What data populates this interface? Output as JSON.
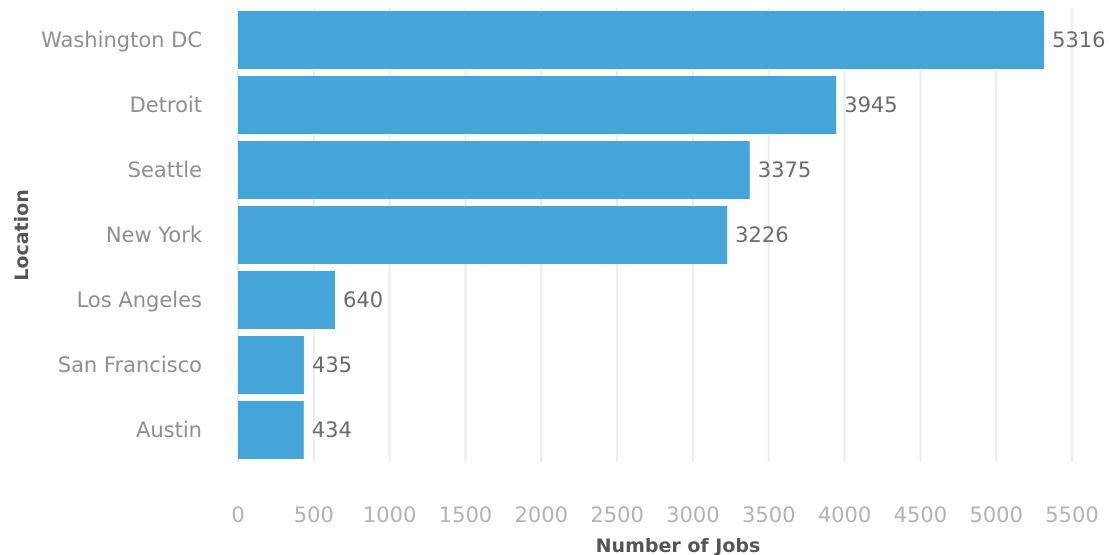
{
  "chart_data": {
    "type": "bar",
    "orientation": "horizontal",
    "categories": [
      "Washington DC",
      "Detroit",
      "Seattle",
      "New York",
      "Los Angeles",
      "San Francisco",
      "Austin"
    ],
    "values": [
      5316,
      3945,
      3375,
      3226,
      640,
      435,
      434
    ],
    "value_labels": [
      "5316",
      "3945",
      "3375",
      "3226",
      "640",
      "435",
      "434"
    ],
    "xlabel": "Number of Jobs",
    "ylabel": "Location",
    "xlim": [
      0,
      5500
    ],
    "x_ticks": [
      "0",
      "500",
      "1000",
      "1500",
      "2000",
      "2500",
      "3000",
      "3500",
      "4000",
      "4500",
      "5000",
      "5500"
    ],
    "grid": true,
    "bar_color": "#45a5d9"
  }
}
